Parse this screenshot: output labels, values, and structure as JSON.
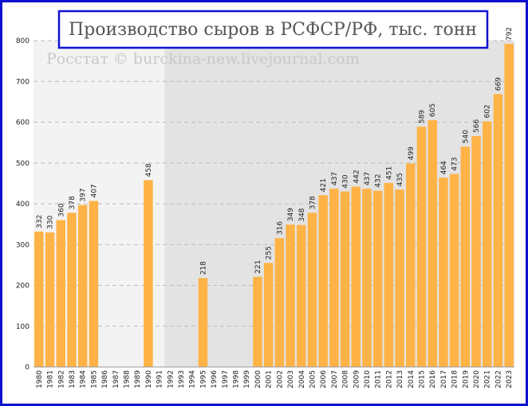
{
  "chart_data": {
    "type": "bar",
    "title": "Производство сыров в РСФСР/РФ, тыс. тонн",
    "watermark": "Росстат © burckina-new.livejournal.com",
    "categories": [
      "1980",
      "1981",
      "1982",
      "1983",
      "1984",
      "1985",
      "1986",
      "1987",
      "1988",
      "1989",
      "1990",
      "1991",
      "1992",
      "1993",
      "1994",
      "1995",
      "1996",
      "1997",
      "1998",
      "1999",
      "2000",
      "2001",
      "2002",
      "2003",
      "2004",
      "2005",
      "2006",
      "2007",
      "2008",
      "2009",
      "2010",
      "2011",
      "2012",
      "2013",
      "2014",
      "2015",
      "2016",
      "2017",
      "2018",
      "2019",
      "2020",
      "2021",
      "2022",
      "2023"
    ],
    "values": [
      332,
      330,
      360,
      378,
      397,
      407,
      null,
      null,
      null,
      null,
      458,
      null,
      null,
      null,
      null,
      218,
      null,
      null,
      null,
      null,
      221,
      255,
      316,
      349,
      348,
      378,
      421,
      437,
      430,
      442,
      437,
      432,
      451,
      435,
      499,
      589,
      605,
      464,
      473,
      540,
      566,
      602,
      669,
      792
    ],
    "color": "#ffb347",
    "ylim": [
      0,
      800
    ],
    "yticks": [
      0,
      100,
      200,
      300,
      400,
      500,
      600,
      700,
      800
    ],
    "grid": true
  }
}
